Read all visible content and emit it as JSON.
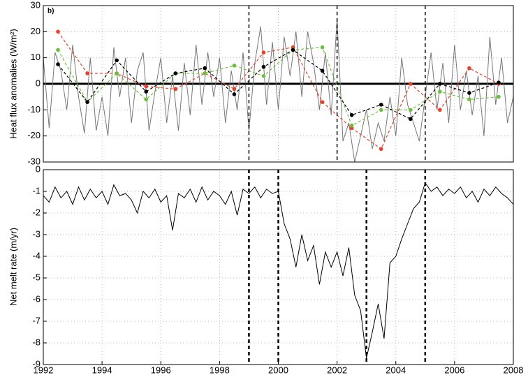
{
  "chart_data": [
    {
      "type": "line",
      "annotation": "b)",
      "y_label": "Heat flux anomalies (W/m²)",
      "xlim": [
        1992,
        2008
      ],
      "ylim": [
        -30,
        30
      ],
      "yticks": [
        -30,
        -20,
        -10,
        0,
        10,
        20,
        30
      ],
      "grid": true,
      "reference_line": 0,
      "vlines": [
        1999,
        2002,
        2005
      ],
      "series": [
        {
          "color": "#777777",
          "markers": false,
          "x": [
            1992.0,
            1992.2,
            1992.4,
            1992.6,
            1992.8,
            1993.0,
            1993.2,
            1993.4,
            1993.6,
            1993.8,
            1994.0,
            1994.2,
            1994.4,
            1994.6,
            1994.8,
            1995.0,
            1995.2,
            1995.4,
            1995.6,
            1995.8,
            1996.0,
            1996.2,
            1996.4,
            1996.6,
            1996.8,
            1997.0,
            1997.2,
            1997.4,
            1997.6,
            1997.8,
            1998.0,
            1998.2,
            1998.4,
            1998.6,
            1998.8,
            1999.0,
            1999.2,
            1999.4,
            1999.6,
            1999.8,
            2000.0,
            2000.2,
            2000.4,
            2000.6,
            2000.8,
            2001.0,
            2001.2,
            2001.4,
            2001.6,
            2001.8,
            2002.0,
            2002.2,
            2002.4,
            2002.6,
            2002.8,
            2003.0,
            2003.2,
            2003.4,
            2003.6,
            2003.8,
            2004.0,
            2004.2,
            2004.4,
            2004.6,
            2004.8,
            2005.0,
            2005.2,
            2005.4,
            2005.6,
            2005.8,
            2006.0,
            2006.2,
            2006.4,
            2006.6,
            2006.8,
            2007.0,
            2007.2,
            2007.4,
            2007.6,
            2007.8,
            2008.0
          ],
          "values": [
            10,
            -17,
            12,
            5,
            -10,
            15,
            -5,
            -19,
            10,
            -18,
            -5,
            -20,
            14,
            -5,
            10,
            -15,
            5,
            12,
            -18,
            -3,
            10,
            -15,
            3,
            -18,
            8,
            -12,
            15,
            -8,
            12,
            -5,
            10,
            -15,
            5,
            -10,
            12,
            -18,
            8,
            22,
            -8,
            16,
            -10,
            18,
            3,
            20,
            -5,
            20,
            8,
            -10,
            12,
            -12,
            25,
            -22,
            -15,
            -30,
            -20,
            -10,
            -25,
            -15,
            -22,
            -5,
            -20,
            10,
            -8,
            -15,
            -22,
            -5,
            12,
            -10,
            8,
            -15,
            15,
            -10,
            5,
            -12,
            3,
            -20,
            18,
            -8,
            10,
            -15,
            -5
          ]
        },
        {
          "color": "#e8402a",
          "markers": true,
          "x": [
            1992.5,
            1993.5,
            1994.5,
            1995.5,
            1996.5,
            1997.5,
            1998.5,
            1999.5,
            2000.5,
            2001.5,
            2002.5,
            2003.5,
            2004.5,
            2005.5,
            2006.5,
            2007.5
          ],
          "values": [
            20,
            4,
            4,
            -1,
            -2,
            4,
            -2,
            12,
            14,
            -7,
            -17,
            -25,
            0,
            -10,
            6,
            0
          ]
        },
        {
          "color": "#6cbf3c",
          "markers": true,
          "x": [
            1992.5,
            1993.5,
            1994.5,
            1995.5,
            1996.5,
            1997.5,
            1998.5,
            1999.5,
            2000.5,
            2001.5,
            2002.5,
            2003.5,
            2004.5,
            2005.5,
            2006.5,
            2007.5
          ],
          "values": [
            13,
            -7,
            4,
            -6,
            4,
            4,
            7,
            3,
            13,
            14,
            -16,
            -10,
            -10,
            -3,
            -6,
            -5
          ]
        },
        {
          "color": "#000000",
          "markers": true,
          "x": [
            1992.5,
            1993.5,
            1994.5,
            1995.5,
            1996.5,
            1997.5,
            1998.5,
            1999.5,
            2000.5,
            2001.5,
            2002.5,
            2003.5,
            2004.5,
            2005.5,
            2006.5,
            2007.5
          ],
          "values": [
            7.5,
            -7,
            9,
            -3,
            4,
            6,
            -4,
            6.5,
            13,
            5,
            -12,
            -8,
            -13.5,
            0,
            -3.5,
            0.5
          ]
        }
      ]
    },
    {
      "type": "line",
      "y_label": "Net melt rate (m/yr)",
      "xlim": [
        1992,
        2008
      ],
      "xticks": [
        1992,
        1994,
        1996,
        1998,
        2000,
        2002,
        2004,
        2006,
        2008
      ],
      "ylim": [
        -9,
        0
      ],
      "yticks": [
        -9,
        -8,
        -7,
        -6,
        -5,
        -4,
        -3,
        -2,
        -1,
        0
      ],
      "grid": true,
      "vlines": [
        1999,
        2000,
        2003,
        2005
      ],
      "series": [
        {
          "color": "#000000",
          "markers": false,
          "x": [
            1992.0,
            1992.2,
            1992.4,
            1992.6,
            1992.8,
            1993.0,
            1993.2,
            1993.4,
            1993.6,
            1993.8,
            1994.0,
            1994.2,
            1994.4,
            1994.6,
            1994.8,
            1995.0,
            1995.2,
            1995.4,
            1995.6,
            1995.8,
            1996.0,
            1996.2,
            1996.4,
            1996.6,
            1996.8,
            1997.0,
            1997.2,
            1997.4,
            1997.6,
            1997.8,
            1998.0,
            1998.2,
            1998.4,
            1998.6,
            1998.8,
            1999.0,
            1999.2,
            1999.4,
            1999.6,
            1999.8,
            2000.0,
            2000.2,
            2000.4,
            2000.6,
            2000.8,
            2001.0,
            2001.2,
            2001.4,
            2001.6,
            2001.8,
            2002.0,
            2002.2,
            2002.4,
            2002.6,
            2002.8,
            2003.0,
            2003.2,
            2003.4,
            2003.6,
            2003.8,
            2004.0,
            2004.2,
            2004.4,
            2004.6,
            2004.8,
            2005.0,
            2005.2,
            2005.4,
            2005.6,
            2005.8,
            2006.0,
            2006.2,
            2006.4,
            2006.6,
            2006.8,
            2007.0,
            2007.2,
            2007.4,
            2007.6,
            2007.8,
            2008.0
          ],
          "values": [
            -1.2,
            -1.5,
            -0.8,
            -1.3,
            -1.0,
            -1.6,
            -0.8,
            -1.4,
            -0.9,
            -1.3,
            -1.0,
            -1.6,
            -0.7,
            -1.2,
            -1.1,
            -1.4,
            -2.0,
            -1.0,
            -1.3,
            -0.9,
            -1.5,
            -1.2,
            -2.8,
            -1.1,
            -1.3,
            -0.9,
            -1.5,
            -0.8,
            -1.4,
            -1.0,
            -1.2,
            -1.6,
            -1.0,
            -2.1,
            -0.9,
            -1.1,
            -0.8,
            -1.3,
            -0.9,
            -1.1,
            -1.0,
            -2.5,
            -3.2,
            -4.5,
            -3.0,
            -4.2,
            -3.5,
            -5.3,
            -3.8,
            -4.5,
            -3.8,
            -4.9,
            -3.6,
            -5.8,
            -6.5,
            -8.7,
            -7.5,
            -6.2,
            -7.8,
            -4.3,
            -4.0,
            -3.2,
            -2.5,
            -1.8,
            -1.5,
            -0.6,
            -1.0,
            -0.8,
            -1.2,
            -0.9,
            -1.1,
            -0.8,
            -1.3,
            -1.0,
            -1.5,
            -0.9,
            -1.2,
            -0.8,
            -1.1,
            -1.3,
            -1.6
          ]
        }
      ]
    }
  ]
}
